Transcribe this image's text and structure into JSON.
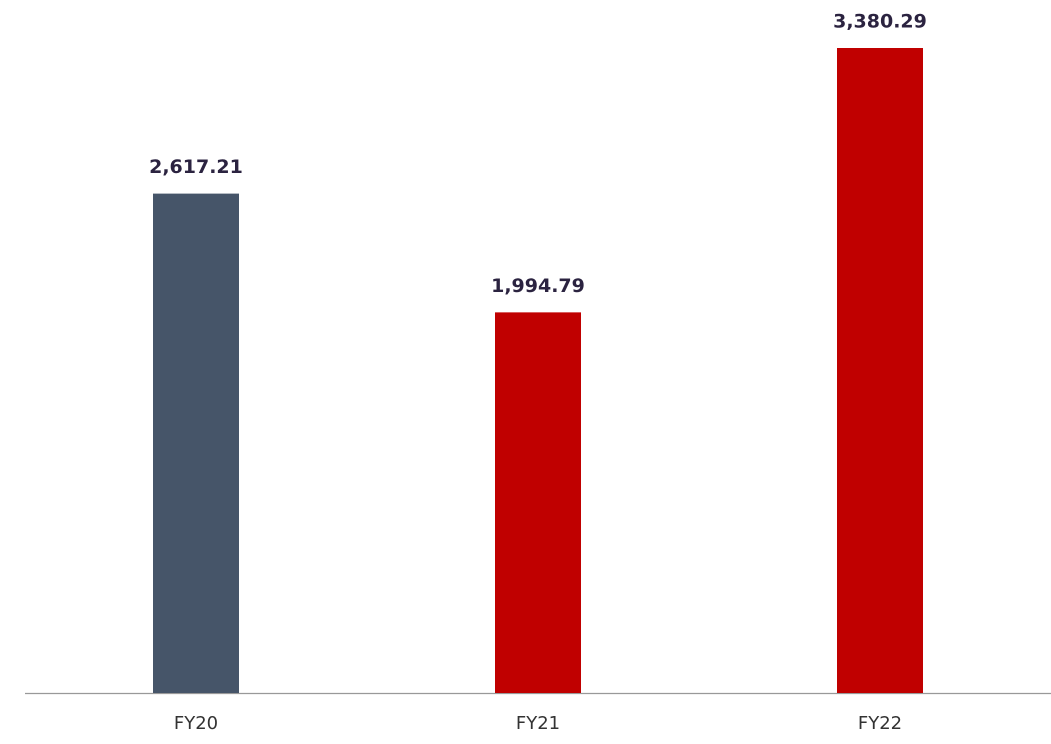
{
  "chart_data": {
    "type": "bar",
    "categories": [
      "FY20",
      "FY21",
      "FY22"
    ],
    "values": [
      2617.21,
      1994.79,
      3380.29
    ],
    "value_labels": [
      "2,617.21",
      "1,994.79",
      "3,380.29"
    ],
    "colors": [
      "#465569",
      "#c00000",
      "#c00000"
    ]
  }
}
